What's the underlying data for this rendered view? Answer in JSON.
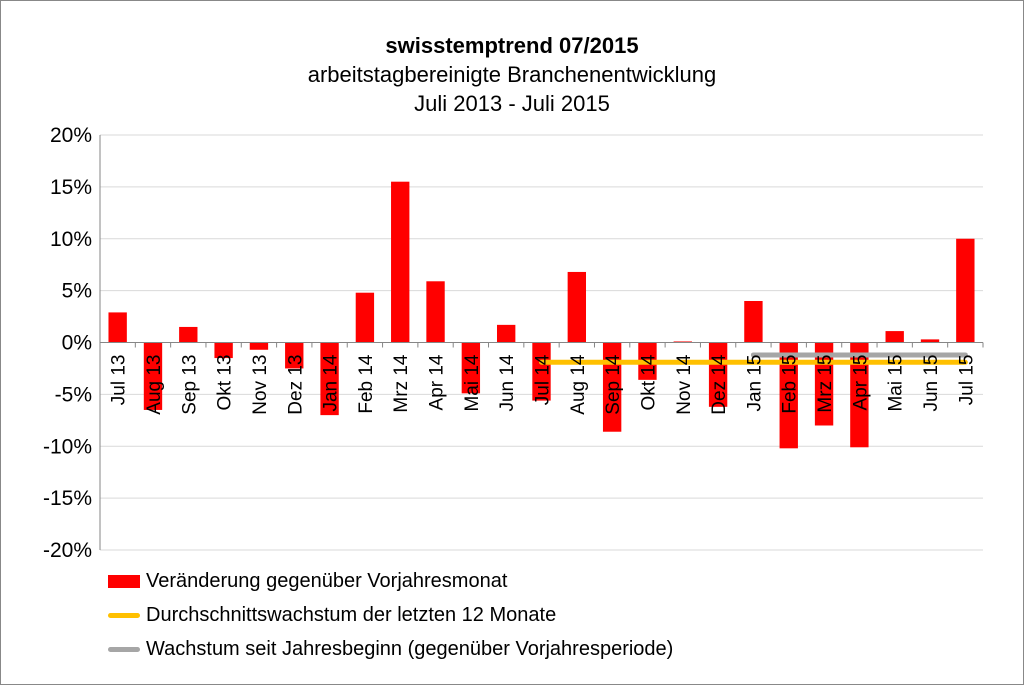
{
  "chart_data": {
    "type": "bar",
    "title": "swisstemptrend 07/2015",
    "subtitle": [
      "arbeitstagbereinigte Branchenentwicklung",
      "Juli 2013 - Juli 2015"
    ],
    "categories": [
      "Jul 13",
      "Aug 13",
      "Sep 13",
      "Okt 13",
      "Nov 13",
      "Dez 13",
      "Jan 14",
      "Feb 14",
      "Mrz 14",
      "Apr 14",
      "Mai 14",
      "Jun 14",
      "Jul 14",
      "Aug 14",
      "Sep 14",
      "Okt 14",
      "Nov 14",
      "Dez 14",
      "Jan 15",
      "Feb 15",
      "Mrz 15",
      "Apr 15",
      "Mai 15",
      "Jun 15",
      "Jul 15"
    ],
    "ylim": [
      -20,
      20
    ],
    "yticks": [
      "20%",
      "15%",
      "10%",
      "5%",
      "0%",
      "-5%",
      "-10%",
      "-15%",
      "-20%"
    ],
    "ytick_values": [
      20,
      15,
      10,
      5,
      0,
      -5,
      -10,
      -15,
      -20
    ],
    "grid": true,
    "legend_placement": "bottom",
    "series": [
      {
        "name": "Veränderung gegenüber Vorjahresmonat",
        "type": "bar",
        "color": "#ff0000",
        "values": [
          2.9,
          -6.5,
          1.5,
          -1.5,
          -0.7,
          -2.5,
          -7.0,
          4.8,
          15.5,
          5.9,
          -4.9,
          1.7,
          -5.6,
          6.8,
          -8.6,
          -3.6,
          0.1,
          -6.2,
          4.0,
          -10.2,
          -8.0,
          -10.1,
          1.1,
          0.3,
          10.0
        ]
      },
      {
        "name": "Durchschnittswachstum der letzten 12 Monate",
        "type": "line",
        "color": "#ffc000",
        "from": "Jul 14",
        "to": "Jul 15",
        "value": -1.9
      },
      {
        "name": "Wachstum seit Jahresbeginn (gegenüber Vorjahresperiode)",
        "type": "line",
        "color": "#a6a6a6",
        "from": "Jan 15",
        "to": "Jul 15",
        "value": -1.2
      }
    ]
  }
}
